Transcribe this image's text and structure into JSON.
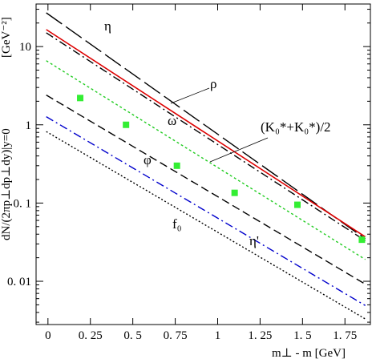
{
  "chart_data": {
    "type": "line",
    "xlabel": "m⊥ - m [GeV]",
    "ylabel": "dN/(2πp⊥dp⊥dy)|y=0",
    "y_unit": "[GeV⁻²]",
    "xlim": [
      -0.07,
      1.9
    ],
    "ylim": [
      0.0028,
      35
    ],
    "y_scale": "log",
    "grid": false,
    "legend": "none",
    "x_ticks": [
      {
        "value": 0,
        "label": "0"
      },
      {
        "value": 0.25,
        "label": "0. 25"
      },
      {
        "value": 0.5,
        "label": "0. 5"
      },
      {
        "value": 0.75,
        "label": "0. 75"
      },
      {
        "value": 1,
        "label": "1"
      },
      {
        "value": 1.25,
        "label": "1. 25"
      },
      {
        "value": 1.5,
        "label": "1. 5"
      },
      {
        "value": 1.75,
        "label": "1. 75"
      }
    ],
    "y_ticks": [
      {
        "value": 10,
        "label": "10"
      },
      {
        "value": 1,
        "label": "1"
      },
      {
        "value": 0.1,
        "label": "0. 1"
      },
      {
        "value": 0.01,
        "label": "0. 01"
      }
    ],
    "series": [
      {
        "name": "η",
        "color": "#000000",
        "dash": "long-dash",
        "x": [
          -0.01,
          1.87
        ],
        "y": [
          27,
          0.035
        ]
      },
      {
        "name": "ρ",
        "color": "#dd0000",
        "dash": "solid",
        "x": [
          -0.01,
          1.87
        ],
        "y": [
          16.5,
          0.037
        ]
      },
      {
        "name": "ω",
        "color": "#000000",
        "dash": "dash-dot",
        "x": [
          -0.01,
          1.87
        ],
        "y": [
          15,
          0.033
        ]
      },
      {
        "name": "(K₀*+K₀*)/2",
        "color": "#22cc22",
        "dash": "dotted",
        "x": [
          -0.01,
          1.87
        ],
        "y": [
          6.6,
          0.019
        ]
      },
      {
        "name": "φ",
        "color": "#000000",
        "dash": "dashed",
        "x": [
          -0.01,
          1.87
        ],
        "y": [
          2.4,
          0.0092
        ]
      },
      {
        "name": "η'",
        "color": "#0000cc",
        "dash": "dash-dot",
        "x": [
          -0.01,
          1.87
        ],
        "y": [
          1.27,
          0.0049
        ]
      },
      {
        "name": "f₀",
        "color": "#000000",
        "dash": "fine-dotted",
        "x": [
          -0.01,
          1.87
        ],
        "y": [
          0.82,
          0.0033
        ]
      }
    ],
    "points": {
      "color": "#33ee33",
      "x": [
        0.19,
        0.46,
        0.76,
        1.1,
        1.47,
        1.85
      ],
      "y": [
        2.2,
        1.0,
        0.3,
        0.135,
        0.095,
        0.034
      ]
    }
  }
}
